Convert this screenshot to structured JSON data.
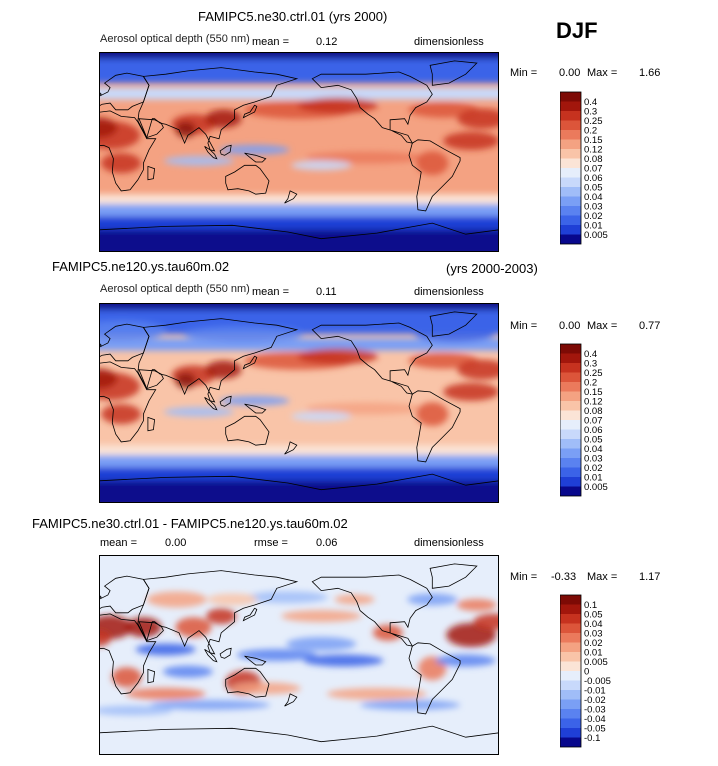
{
  "season": "DJF",
  "colors": {
    "ocean_deep": "#0a2a9a",
    "land_line": "#000000"
  },
  "panels": [
    {
      "title": "FAMIPC5.ne30.ctrl.01 (yrs 2000)",
      "title_right": "",
      "variable": "Aerosol optical depth (550 nm)",
      "mean_label": "mean =",
      "mean_value": "0.12",
      "rmse_label": "",
      "rmse_value": "",
      "units": "dimensionless",
      "min_label": "Min =",
      "min_value": "0.00",
      "max_label": "Max =",
      "max_value": "1.66"
    },
    {
      "title": "FAMIPC5.ne120.ys.tau60m.02",
      "title_right": "(yrs 2000-2003)",
      "variable": "Aerosol optical depth (550 nm)",
      "mean_label": "mean =",
      "mean_value": "0.11",
      "rmse_label": "",
      "rmse_value": "",
      "units": "dimensionless",
      "min_label": "Min =",
      "min_value": "0.00",
      "max_label": "Max =",
      "max_value": "0.77"
    },
    {
      "title": "FAMIPC5.ne30.ctrl.01 - FAMIPC5.ne120.ys.tau60m.02",
      "title_right": "",
      "variable": "",
      "mean_label": "mean =",
      "mean_value": "0.00",
      "rmse_label": "rmse =",
      "rmse_value": "0.06",
      "units": "dimensionless",
      "min_label": "Min =",
      "min_value": "-0.33",
      "max_label": "Max =",
      "max_value": "1.17"
    }
  ],
  "chart_data": [
    {
      "type": "heatmap",
      "title": "FAMIPC5.ne30.ctrl.01 (yrs 2000)",
      "colorbar": {
        "levels": [
          "0.005",
          "0.01",
          "0.02",
          "0.03",
          "0.04",
          "0.05",
          "0.06",
          "0.07",
          "0.08",
          "0.12",
          "0.15",
          "0.2",
          "0.25",
          "0.3",
          "0.4"
        ],
        "colors": [
          "#08088c",
          "#1f3fd6",
          "#3b63e8",
          "#5a82f0",
          "#7a9ff5",
          "#a0bdf8",
          "#c8d9fb",
          "#e6eefb",
          "#fbe4d6",
          "#f9c4a8",
          "#f4a282",
          "#eb7a5c",
          "#dc553a",
          "#c6321f",
          "#a2160c",
          "#7d0a05"
        ]
      },
      "stats": {
        "mean": 0.12,
        "min": 0.0,
        "max": 1.66
      }
    },
    {
      "type": "heatmap",
      "title": "FAMIPC5.ne120.ys.tau60m.02",
      "colorbar": {
        "levels": [
          "0.005",
          "0.01",
          "0.02",
          "0.03",
          "0.04",
          "0.05",
          "0.06",
          "0.07",
          "0.08",
          "0.12",
          "0.15",
          "0.2",
          "0.25",
          "0.3",
          "0.4"
        ],
        "colors": [
          "#08088c",
          "#1f3fd6",
          "#3b63e8",
          "#5a82f0",
          "#7a9ff5",
          "#a0bdf8",
          "#c8d9fb",
          "#e6eefb",
          "#fbe4d6",
          "#f9c4a8",
          "#f4a282",
          "#eb7a5c",
          "#dc553a",
          "#c6321f",
          "#a2160c",
          "#7d0a05"
        ]
      },
      "stats": {
        "mean": 0.11,
        "min": 0.0,
        "max": 0.77
      }
    },
    {
      "type": "heatmap",
      "title": "FAMIPC5.ne30.ctrl.01 - FAMIPC5.ne120.ys.tau60m.02",
      "colorbar": {
        "levels": [
          "-0.1",
          "-0.05",
          "-0.04",
          "-0.03",
          "-0.02",
          "-0.01",
          "-0.005",
          "0",
          "0.005",
          "0.01",
          "0.02",
          "0.03",
          "0.04",
          "0.05",
          "0.1"
        ],
        "colors": [
          "#08088c",
          "#1f3fd6",
          "#3b63e8",
          "#5a82f0",
          "#7a9ff5",
          "#a0bdf8",
          "#c8d9fb",
          "#e6eefb",
          "#fbe4d6",
          "#f9c4a8",
          "#f4a282",
          "#eb7a5c",
          "#dc553a",
          "#c6321f",
          "#a2160c",
          "#7d0a05"
        ]
      },
      "stats": {
        "mean": 0.0,
        "rmse": 0.06,
        "min": -0.33,
        "max": 1.17
      }
    }
  ]
}
